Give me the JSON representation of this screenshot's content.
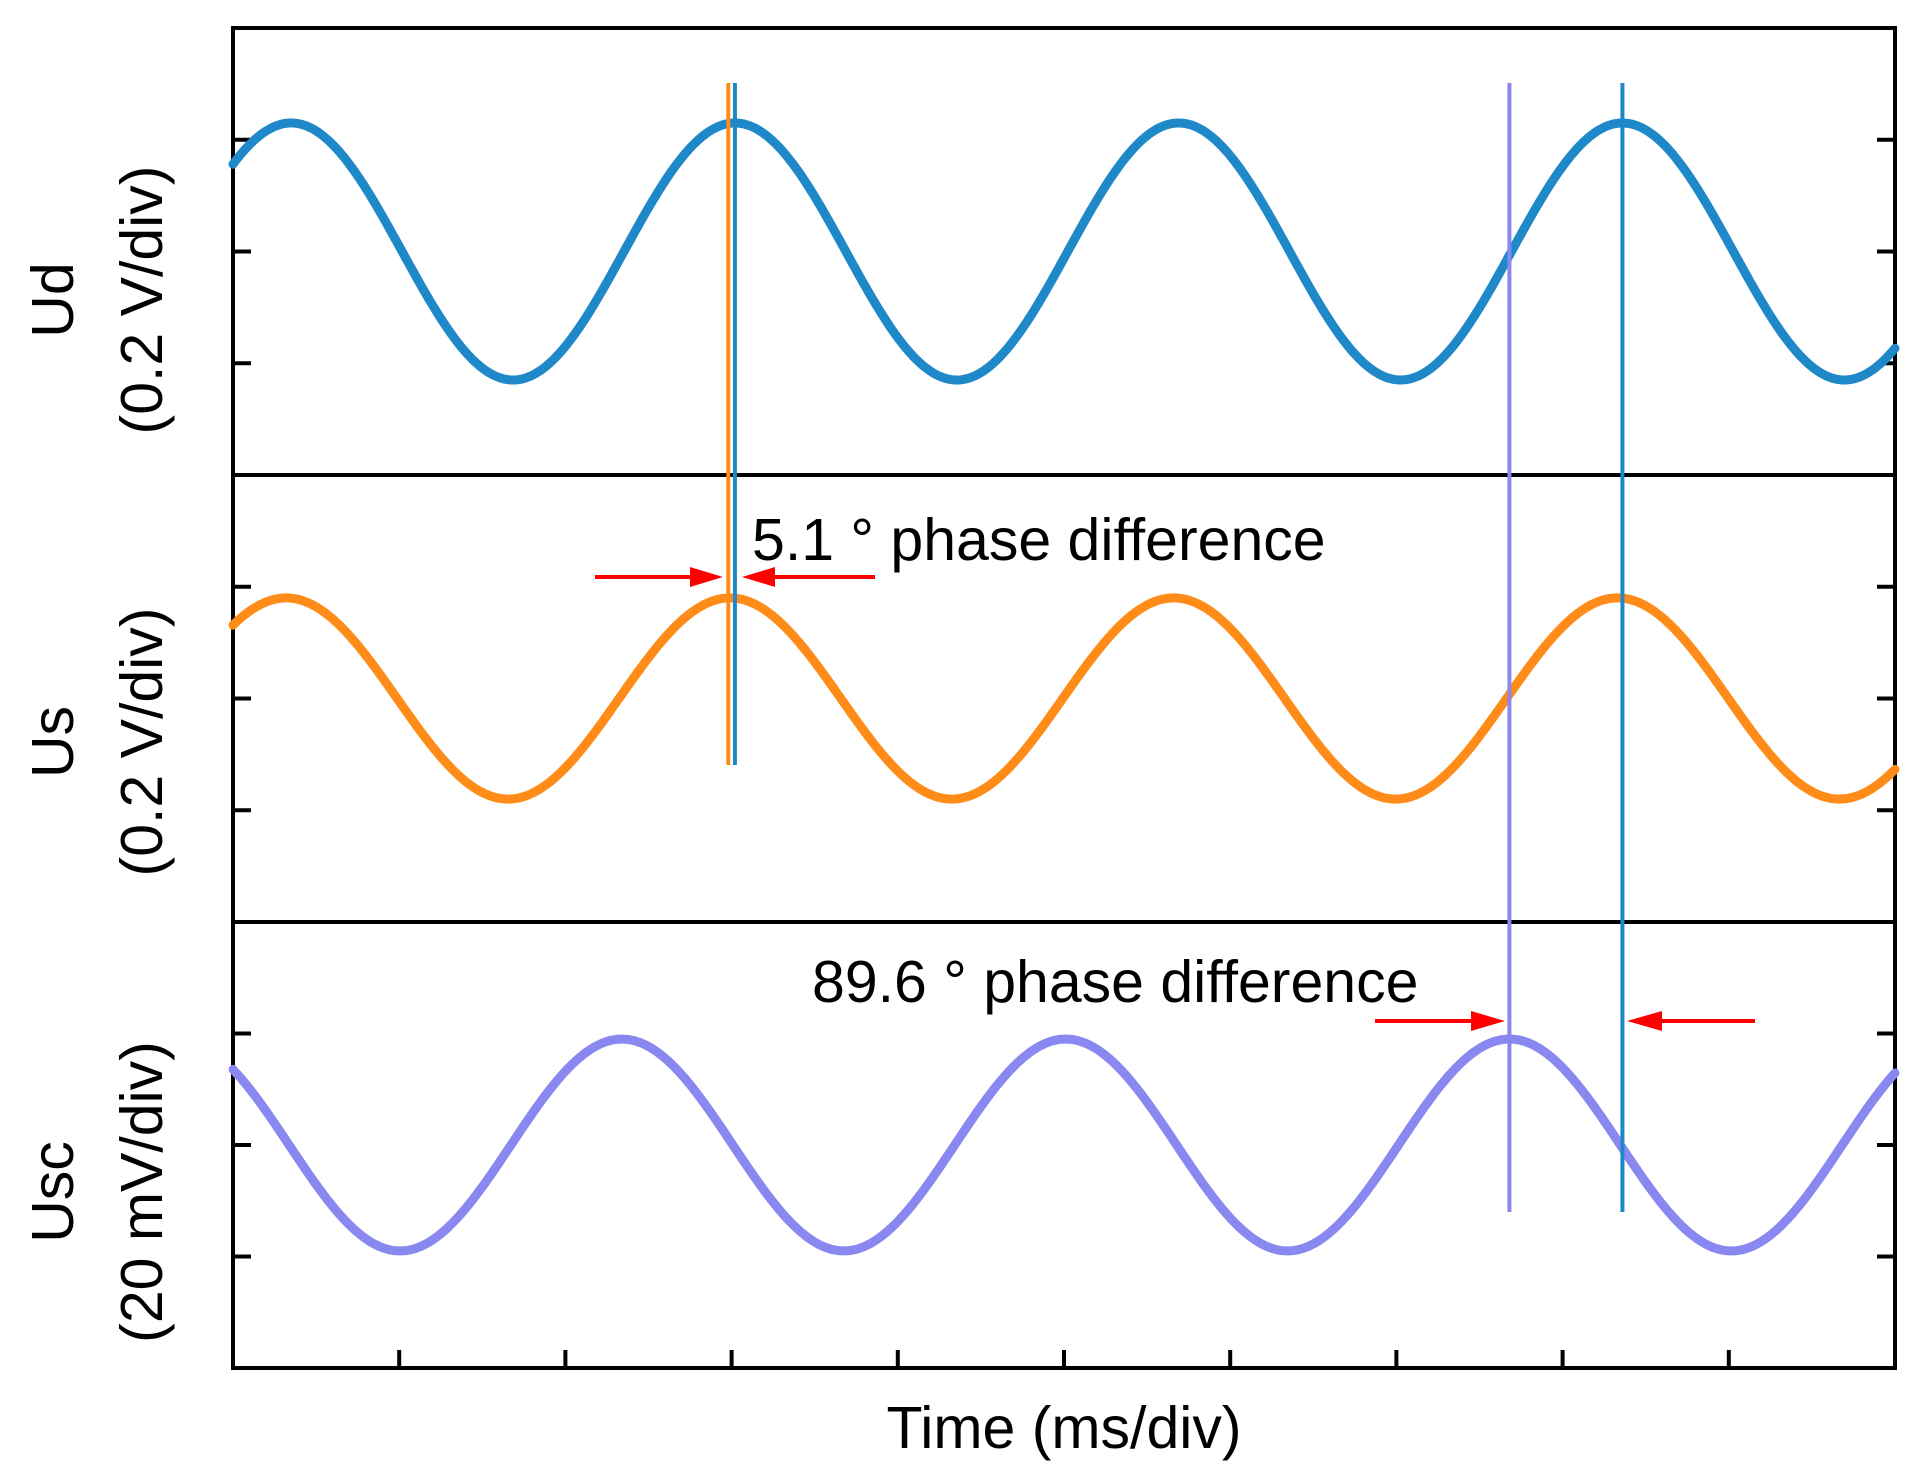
{
  "chart_data": {
    "type": "line",
    "title": "",
    "xlabel": "Time (ms/div)",
    "x_divisions": 10,
    "xlim": [
      0,
      10
    ],
    "grid": false,
    "legend": "none",
    "panels": [
      {
        "id": "ud",
        "label": "Ud",
        "unit_label": "(0.2 V/div)",
        "color": "#1e88c8",
        "ylim": [
          -2,
          2
        ],
        "series": [
          {
            "name": "Ud",
            "amplitude_div": 1.15,
            "offset_div": 0,
            "period_div": 2.67,
            "peak_at_div": [
              0.35,
              3.02,
              5.69,
              8.36
            ]
          }
        ]
      },
      {
        "id": "us",
        "label": "Us",
        "unit_label": "(0.2 V/div)",
        "color": "#ff8c19",
        "ylim": [
          -2,
          2
        ],
        "series": [
          {
            "name": "Us",
            "amplitude_div": 0.9,
            "offset_div": 0,
            "period_div": 2.67,
            "peak_at_div": [
              0.32,
              2.98,
              5.65,
              8.32
            ]
          }
        ]
      },
      {
        "id": "usc",
        "label": "Usc",
        "unit_label": "(20 mV/div)",
        "color": "#8888f0",
        "ylim": [
          -2,
          2
        ],
        "series": [
          {
            "name": "Usc",
            "amplitude_div": 0.95,
            "offset_div": 0,
            "period_div": 2.67,
            "peak_at_div": [
              2.34,
              5.01,
              7.68
            ]
          }
        ]
      }
    ],
    "markers": [
      {
        "name": "us-peak-marker",
        "x_div": 2.98,
        "color": "#ff8c19",
        "from_panel": 0,
        "to_panel": 1
      },
      {
        "name": "ud-peak-marker-1",
        "x_div": 3.02,
        "color": "#1e88c8",
        "from_panel": 0,
        "to_panel": 1
      },
      {
        "name": "usc-peak-marker",
        "x_div": 7.68,
        "color": "#8888f0",
        "from_panel": 0,
        "to_panel": 2
      },
      {
        "name": "ud-peak-marker-2",
        "x_div": 8.36,
        "color": "#1e88c8",
        "from_panel": 0,
        "to_panel": 2
      }
    ],
    "annotations": [
      {
        "name": "annotation-us-ud",
        "text": "5.1 ° phase difference",
        "value_deg": 5.1,
        "panel": 1
      },
      {
        "name": "annotation-usc-ud",
        "text": "89.6 ° phase difference",
        "value_deg": 89.6,
        "panel": 2
      }
    ],
    "arrow_color": "#ff0000"
  }
}
